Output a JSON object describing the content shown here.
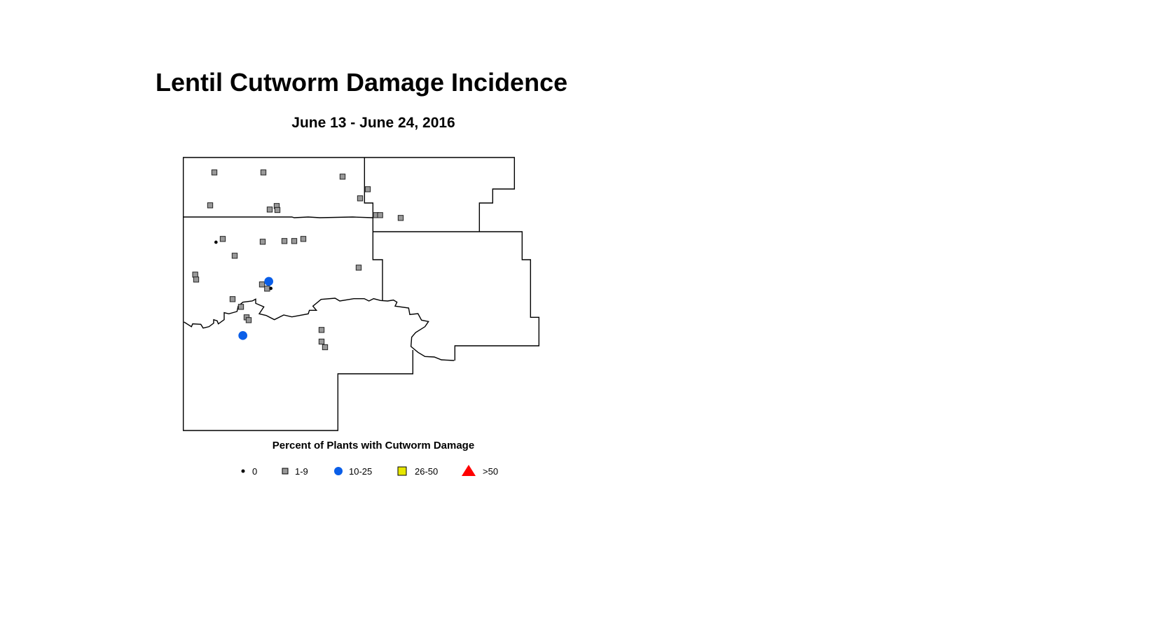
{
  "title": "Lentil Cutworm Damage Incidence",
  "subtitle": "June 13 - June 24, 2016",
  "legend": {
    "title": "Percent of Plants with Cutworm Damage",
    "classes": [
      {
        "label": "0",
        "symbol": "dot",
        "color": "#000000"
      },
      {
        "label": "1-9",
        "symbol": "square",
        "color": "#999999"
      },
      {
        "label": "10-25",
        "symbol": "circle",
        "color": "#0a5ee8"
      },
      {
        "label": "26-50",
        "symbol": "square",
        "color": "#e6e600"
      },
      {
        "label": ">50",
        "symbol": "triangle",
        "color": "#ff0000"
      }
    ]
  }
}
